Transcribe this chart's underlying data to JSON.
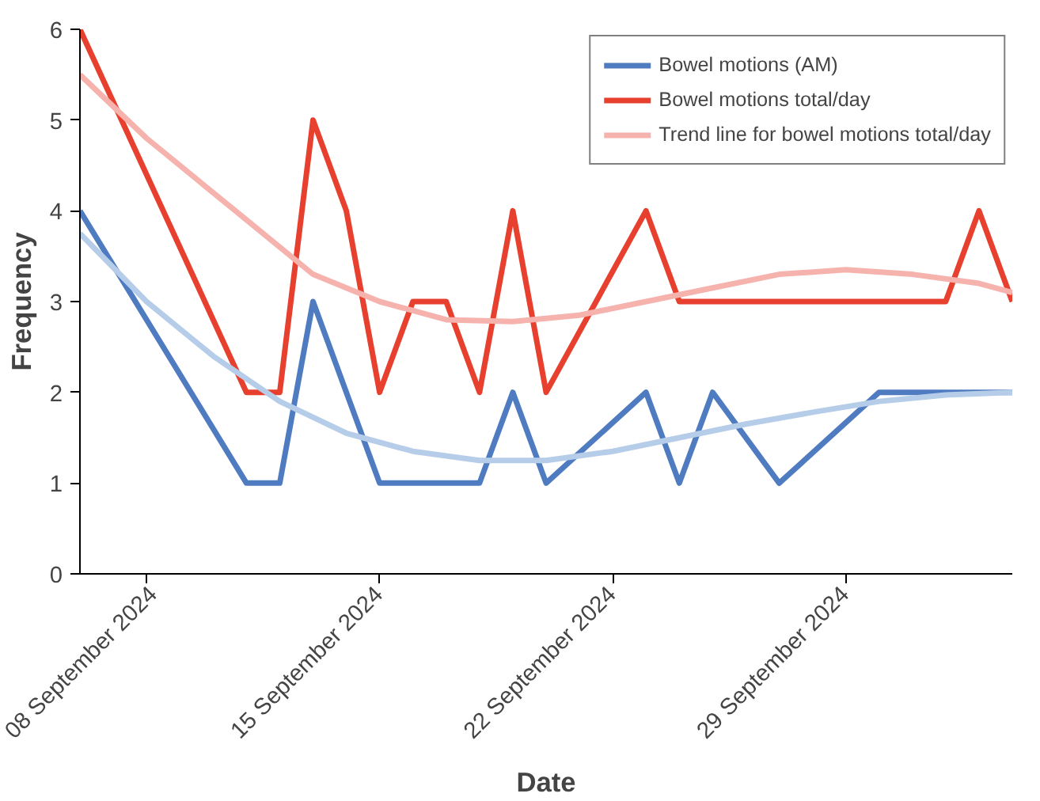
{
  "chart_data": {
    "type": "line",
    "xlabel": "Date",
    "ylabel": "Frequency",
    "xlim": [
      "2024-09-06",
      "2024-10-04"
    ],
    "xticks": [
      {
        "value": "2024-09-08",
        "label": "08 September 2024"
      },
      {
        "value": "2024-09-15",
        "label": "15 September 2024"
      },
      {
        "value": "2024-09-22",
        "label": "22 September 2024"
      },
      {
        "value": "2024-09-29",
        "label": "29 September 2024"
      }
    ],
    "ylim": [
      0,
      6
    ],
    "yticks": [
      0,
      1,
      2,
      3,
      4,
      5,
      6
    ],
    "grid": false,
    "legend": "top right",
    "marker": "none",
    "line_style": "solid",
    "series": [
      {
        "name": "Bowel motions (AM)",
        "color": "#4f7bc0",
        "x": [
          "2024-09-06",
          "2024-09-11",
          "2024-09-12",
          "2024-09-13",
          "2024-09-15",
          "2024-09-18",
          "2024-09-19",
          "2024-09-20",
          "2024-09-23",
          "2024-09-24",
          "2024-09-25",
          "2024-09-27",
          "2024-09-30",
          "2024-10-04"
        ],
        "values": [
          4,
          1,
          1,
          3,
          1,
          1,
          2,
          1,
          2,
          1,
          2,
          1,
          2,
          2
        ]
      },
      {
        "name": "Bowel motions total/day",
        "color": "#e8402f",
        "x": [
          "2024-09-06",
          "2024-09-11",
          "2024-09-12",
          "2024-09-13",
          "2024-09-14",
          "2024-09-15",
          "2024-09-16",
          "2024-09-17",
          "2024-09-18",
          "2024-09-19",
          "2024-09-20",
          "2024-09-23",
          "2024-09-24",
          "2024-10-02",
          "2024-10-03",
          "2024-10-04"
        ],
        "values": [
          6,
          2,
          2,
          5,
          4,
          2,
          3,
          3,
          2,
          4,
          2,
          4,
          3,
          3,
          4,
          3
        ]
      },
      {
        "name": "Trend line for bowel motions total/day",
        "color": "#f6b3ad",
        "x": [
          "2024-09-06",
          "2024-09-08",
          "2024-09-11",
          "2024-09-13",
          "2024-09-15",
          "2024-09-17",
          "2024-09-19",
          "2024-09-21",
          "2024-09-23",
          "2024-09-25",
          "2024-09-27",
          "2024-09-29",
          "2024-10-01",
          "2024-10-03",
          "2024-10-04"
        ],
        "values": [
          5.5,
          4.8,
          3.9,
          3.3,
          3.0,
          2.8,
          2.78,
          2.85,
          3.0,
          3.15,
          3.3,
          3.35,
          3.3,
          3.2,
          3.1
        ]
      },
      {
        "color": "#b6cde9",
        "x": [
          "2024-09-06",
          "2024-09-08",
          "2024-09-10",
          "2024-09-12",
          "2024-09-14",
          "2024-09-16",
          "2024-09-18",
          "2024-09-20",
          "2024-09-22",
          "2024-09-24",
          "2024-09-26",
          "2024-09-28",
          "2024-09-30",
          "2024-10-02",
          "2024-10-04"
        ],
        "values": [
          3.75,
          3.0,
          2.4,
          1.9,
          1.55,
          1.35,
          1.25,
          1.25,
          1.35,
          1.5,
          1.65,
          1.78,
          1.9,
          1.97,
          2.0
        ]
      }
    ]
  }
}
